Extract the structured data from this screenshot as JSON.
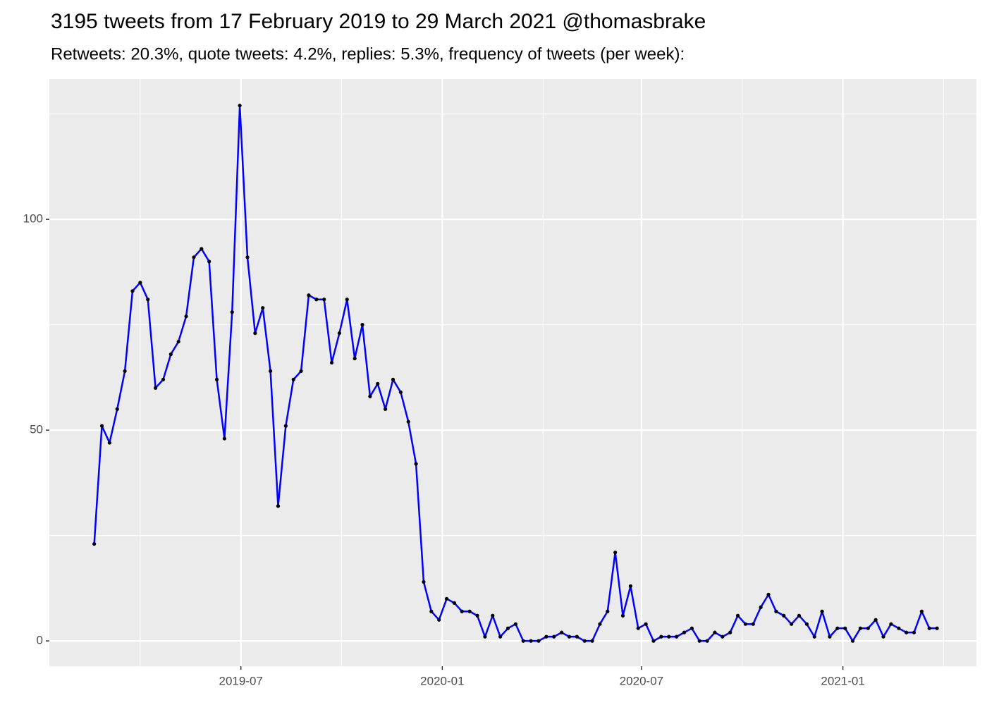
{
  "chart_data": {
    "type": "line",
    "title": "3195 tweets from 17 February 2019 to 29 March 2021 @thomasbrake",
    "subtitle": "Retweets: 20.3%, quote tweets: 4.2%, replies: 5.3%, frequency of tweets (per week):",
    "x": [
      "2019-02-17",
      "2019-02-24",
      "2019-03-03",
      "2019-03-10",
      "2019-03-17",
      "2019-03-24",
      "2019-03-31",
      "2019-04-07",
      "2019-04-14",
      "2019-04-21",
      "2019-04-28",
      "2019-05-05",
      "2019-05-12",
      "2019-05-19",
      "2019-05-26",
      "2019-06-02",
      "2019-06-09",
      "2019-06-16",
      "2019-06-23",
      "2019-06-30",
      "2019-07-07",
      "2019-07-14",
      "2019-07-21",
      "2019-07-28",
      "2019-08-04",
      "2019-08-11",
      "2019-08-18",
      "2019-08-25",
      "2019-09-01",
      "2019-09-08",
      "2019-09-15",
      "2019-09-22",
      "2019-09-29",
      "2019-10-06",
      "2019-10-13",
      "2019-10-20",
      "2019-10-27",
      "2019-11-03",
      "2019-11-10",
      "2019-11-17",
      "2019-11-24",
      "2019-12-01",
      "2019-12-08",
      "2019-12-15",
      "2019-12-22",
      "2019-12-29",
      "2020-01-05",
      "2020-01-12",
      "2020-01-19",
      "2020-01-26",
      "2020-02-02",
      "2020-02-09",
      "2020-02-16",
      "2020-02-23",
      "2020-03-01",
      "2020-03-08",
      "2020-03-15",
      "2020-03-22",
      "2020-03-29",
      "2020-04-05",
      "2020-04-12",
      "2020-04-19",
      "2020-04-26",
      "2020-05-03",
      "2020-05-10",
      "2020-05-17",
      "2020-05-24",
      "2020-05-31",
      "2020-06-07",
      "2020-06-14",
      "2020-06-21",
      "2020-06-28",
      "2020-07-05",
      "2020-07-12",
      "2020-07-19",
      "2020-07-26",
      "2020-08-02",
      "2020-08-09",
      "2020-08-16",
      "2020-08-23",
      "2020-08-30",
      "2020-09-06",
      "2020-09-13",
      "2020-09-20",
      "2020-09-27",
      "2020-10-04",
      "2020-10-11",
      "2020-10-18",
      "2020-10-25",
      "2020-11-01",
      "2020-11-08",
      "2020-11-15",
      "2020-11-22",
      "2020-11-29",
      "2020-12-06",
      "2020-12-13",
      "2020-12-20",
      "2020-12-27",
      "2021-01-03",
      "2021-01-10",
      "2021-01-17",
      "2021-01-24",
      "2021-01-31",
      "2021-02-07",
      "2021-02-14",
      "2021-02-21",
      "2021-02-28",
      "2021-03-07",
      "2021-03-14",
      "2021-03-21",
      "2021-03-28"
    ],
    "series": [
      {
        "color": "#0000ff",
        "point_color": "#000000",
        "values": [
          23,
          51,
          47,
          55,
          64,
          83,
          85,
          81,
          60,
          62,
          68,
          71,
          77,
          91,
          93,
          90,
          62,
          48,
          78,
          127,
          91,
          73,
          79,
          64,
          32,
          51,
          62,
          64,
          82,
          81,
          81,
          66,
          73,
          81,
          67,
          75,
          58,
          61,
          55,
          62,
          59,
          52,
          42,
          14,
          7,
          5,
          10,
          9,
          7,
          7,
          6,
          1,
          6,
          1,
          3,
          4,
          0,
          0,
          0,
          1,
          1,
          2,
          1,
          1,
          0,
          0,
          4,
          7,
          21,
          6,
          13,
          3,
          4,
          0,
          1,
          1,
          1,
          2,
          3,
          0,
          0,
          2,
          1,
          2,
          6,
          4,
          4,
          8,
          11,
          7,
          6,
          4,
          6,
          4,
          1,
          7,
          1,
          3,
          3,
          0,
          3,
          3,
          5,
          1,
          4,
          3,
          2,
          2,
          7,
          3,
          3
        ]
      }
    ],
    "xlim": [
      "2019-01-07",
      "2021-05-03"
    ],
    "xticks": [
      {
        "value": "2019-07-01",
        "label": "2019-07"
      },
      {
        "value": "2020-01-01",
        "label": "2020-01"
      },
      {
        "value": "2020-07-01",
        "label": "2020-07"
      },
      {
        "value": "2021-01-01",
        "label": "2021-01"
      }
    ],
    "ylim": [
      -6,
      133.3
    ],
    "yticks": [
      0,
      50,
      100
    ],
    "grid": true
  }
}
